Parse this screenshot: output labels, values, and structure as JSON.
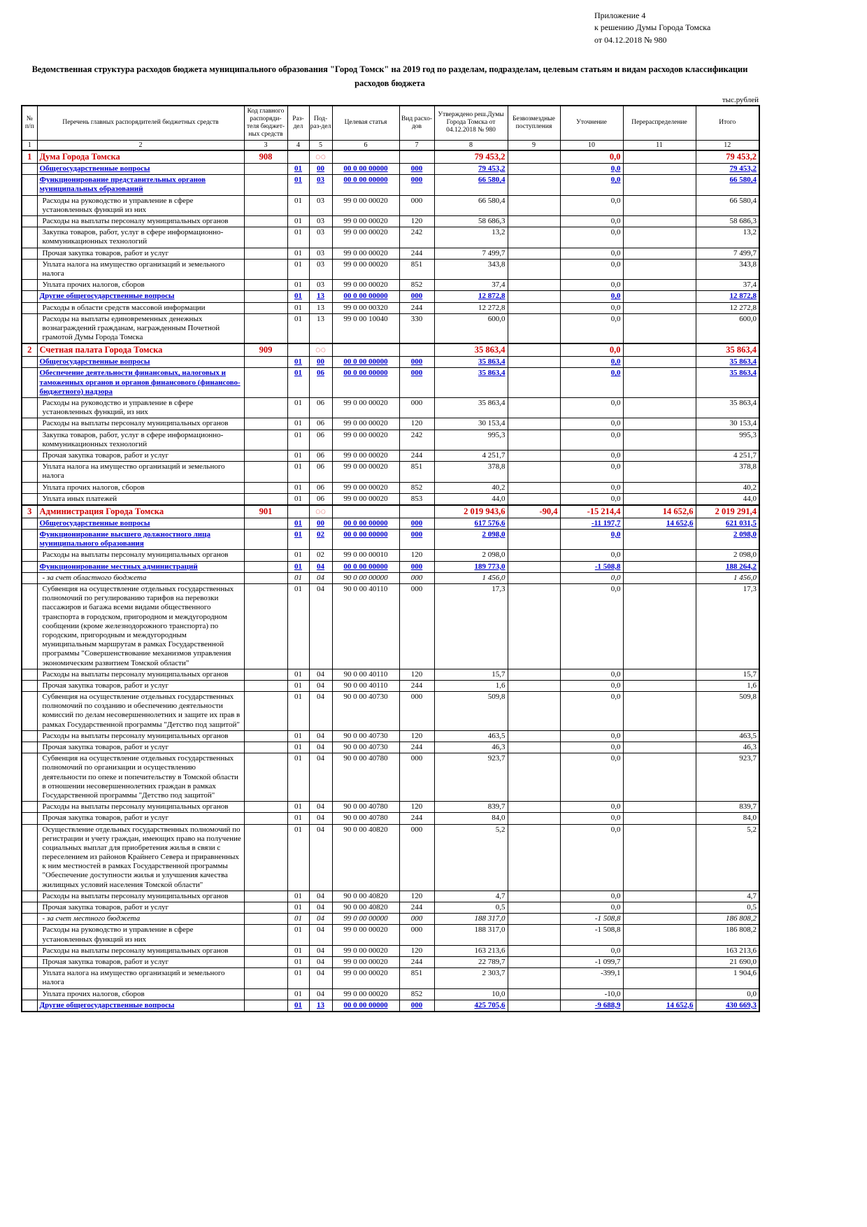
{
  "page": {
    "annotation": [
      "Приложение 4",
      "к решению Думы Города Томска",
      "от 04.12.2018 № 980"
    ],
    "title": "Ведомственная структура расходов бюджета муниципального образования \"Город Томск\" на 2019 год по разделам, подразделам, целевым статьям и видам расходов классификации расходов бюджета",
    "units": "тыс.рублей"
  },
  "table": {
    "headers": [
      "№ п/п",
      "Перечень главных распорядителей бюджетных средств",
      "Код главного распоряди-теля бюджет-ных средств",
      "Раз-дел",
      "Под-раз-дел",
      "Целевая статья",
      "Вид расхо-дов",
      "Утверждено реш.Думы Города Томска от 04.12.2018 № 980",
      "Безвозмездные поступления",
      "Уточнение",
      "Перераспределение",
      "Итого"
    ],
    "column_numbers": [
      "1",
      "2",
      "3",
      "4",
      "5",
      "6",
      "7",
      "8",
      "9",
      "10",
      "11",
      "12"
    ],
    "rows": [
      {
        "style": "red",
        "num": "1",
        "name": "Дума Города Томска",
        "code": "908",
        "rz": "",
        "pr": "◌◌",
        "cs": "",
        "vr": "",
        "approved": "79 453,2",
        "grants": "",
        "adjust": "0,0",
        "redistrib": "",
        "total": "79 453,2"
      },
      {
        "style": "blue",
        "num": "",
        "name": "Общегосударственные вопросы",
        "code": "",
        "rz": "01",
        "pr": "00",
        "cs": "00 0 00 00000",
        "vr": "000",
        "approved": "79 453,2",
        "grants": "",
        "adjust": "0,0",
        "redistrib": "",
        "total": "79 453,2"
      },
      {
        "style": "blue",
        "num": "",
        "name": "Функционирование представительных органов муниципальных образований",
        "code": "",
        "rz": "01",
        "pr": "03",
        "cs": "00 0 00 00000",
        "vr": "000",
        "approved": "66 580,4",
        "grants": "",
        "adjust": "0,0",
        "redistrib": "",
        "total": "66 580,4"
      },
      {
        "style": "normal",
        "num": "",
        "name": "Расходы на руководство и управление в сфере установленных функций из них",
        "code": "",
        "rz": "01",
        "pr": "03",
        "cs": "99 0 00 00020",
        "vr": "000",
        "approved": "66 580,4",
        "grants": "",
        "adjust": "0,0",
        "redistrib": "",
        "total": "66 580,4"
      },
      {
        "style": "normal",
        "num": "",
        "name": "Расходы на выплаты персоналу муниципальных органов",
        "code": "",
        "rz": "01",
        "pr": "03",
        "cs": "99 0 00 00020",
        "vr": "120",
        "approved": "58 686,3",
        "grants": "",
        "adjust": "0,0",
        "redistrib": "",
        "total": "58 686,3"
      },
      {
        "style": "normal",
        "num": "",
        "name": "Закупка товаров, работ, услуг в сфере информационно-коммуникационных технологий",
        "code": "",
        "rz": "01",
        "pr": "03",
        "cs": "99 0 00 00020",
        "vr": "242",
        "approved": "13,2",
        "grants": "",
        "adjust": "0,0",
        "redistrib": "",
        "total": "13,2"
      },
      {
        "style": "normal",
        "num": "",
        "name": "Прочая закупка товаров, работ и услуг",
        "code": "",
        "rz": "01",
        "pr": "03",
        "cs": "99 0 00 00020",
        "vr": "244",
        "approved": "7 499,7",
        "grants": "",
        "adjust": "0,0",
        "redistrib": "",
        "total": "7 499,7"
      },
      {
        "style": "normal",
        "num": "",
        "name": "Уплата налога на имущество организаций и земельного налога",
        "code": "",
        "rz": "01",
        "pr": "03",
        "cs": "99 0 00 00020",
        "vr": "851",
        "approved": "343,8",
        "grants": "",
        "adjust": "0,0",
        "redistrib": "",
        "total": "343,8"
      },
      {
        "style": "normal",
        "num": "",
        "name": "Уплата прочих налогов, сборов",
        "code": "",
        "rz": "01",
        "pr": "03",
        "cs": "99 0 00 00020",
        "vr": "852",
        "approved": "37,4",
        "grants": "",
        "adjust": "0,0",
        "redistrib": "",
        "total": "37,4"
      },
      {
        "style": "blue",
        "num": "",
        "name": "Другие общегосударственные вопросы",
        "code": "",
        "rz": "01",
        "pr": "13",
        "cs": "00 0 00 00000",
        "vr": "000",
        "approved": "12 872,8",
        "grants": "",
        "adjust": "0,0",
        "redistrib": "",
        "total": "12 872,8"
      },
      {
        "style": "normal",
        "num": "",
        "name": "Расходы в области средств массовой информации",
        "code": "",
        "rz": "01",
        "pr": "13",
        "cs": "99 0 00 00320",
        "vr": "244",
        "approved": "12 272,8",
        "grants": "",
        "adjust": "0,0",
        "redistrib": "",
        "total": "12 272,8"
      },
      {
        "style": "normal",
        "num": "",
        "name": "Расходы на выплаты единовременных денежных вознаграждений гражданам, награжденным Почетной грамотой Думы Города Томска",
        "code": "",
        "rz": "01",
        "pr": "13",
        "cs": "99 0 00 10040",
        "vr": "330",
        "approved": "600,0",
        "grants": "",
        "adjust": "0,0",
        "redistrib": "",
        "total": "600,0"
      },
      {
        "style": "red",
        "num": "2",
        "name": "Счетная палата Города Томска",
        "code": "909",
        "rz": "",
        "pr": "◌◌",
        "cs": "",
        "vr": "",
        "approved": "35 863,4",
        "grants": "",
        "adjust": "0,0",
        "redistrib": "",
        "total": "35 863,4"
      },
      {
        "style": "blue",
        "num": "",
        "name": "Общегосударственные вопросы",
        "code": "",
        "rz": "01",
        "pr": "00",
        "cs": "00 0 00 00000",
        "vr": "000",
        "approved": "35 863,4",
        "grants": "",
        "adjust": "0,0",
        "redistrib": "",
        "total": "35 863,4"
      },
      {
        "style": "blue",
        "num": "",
        "name": "Обеспечение деятельности финансовых, налоговых и таможенных органов и органов финансового (финансово-бюджетного) надзора",
        "code": "",
        "rz": "01",
        "pr": "06",
        "cs": "00 0 00 00000",
        "vr": "000",
        "approved": "35 863,4",
        "grants": "",
        "adjust": "0,0",
        "redistrib": "",
        "total": "35 863,4"
      },
      {
        "style": "normal",
        "num": "",
        "name": "Расходы на руководство и управление в сфере установленных функций, из них",
        "code": "",
        "rz": "01",
        "pr": "06",
        "cs": "99 0 00 00020",
        "vr": "000",
        "approved": "35 863,4",
        "grants": "",
        "adjust": "0,0",
        "redistrib": "",
        "total": "35 863,4"
      },
      {
        "style": "normal",
        "num": "",
        "name": "Расходы на выплаты персоналу муниципальных органов",
        "code": "",
        "rz": "01",
        "pr": "06",
        "cs": "99 0 00 00020",
        "vr": "120",
        "approved": "30 153,4",
        "grants": "",
        "adjust": "0,0",
        "redistrib": "",
        "total": "30 153,4"
      },
      {
        "style": "normal",
        "num": "",
        "name": "Закупка товаров, работ, услуг в сфере информационно-коммуникационных технологий",
        "code": "",
        "rz": "01",
        "pr": "06",
        "cs": "99 0 00 00020",
        "vr": "242",
        "approved": "995,3",
        "grants": "",
        "adjust": "0,0",
        "redistrib": "",
        "total": "995,3"
      },
      {
        "style": "normal",
        "num": "",
        "name": "Прочая закупка товаров, работ и услуг",
        "code": "",
        "rz": "01",
        "pr": "06",
        "cs": "99 0 00 00020",
        "vr": "244",
        "approved": "4 251,7",
        "grants": "",
        "adjust": "0,0",
        "redistrib": "",
        "total": "4 251,7"
      },
      {
        "style": "normal",
        "num": "",
        "name": "Уплата налога на имущество организаций и земельного налога",
        "code": "",
        "rz": "01",
        "pr": "06",
        "cs": "99 0 00 00020",
        "vr": "851",
        "approved": "378,8",
        "grants": "",
        "adjust": "0,0",
        "redistrib": "",
        "total": "378,8"
      },
      {
        "style": "normal",
        "num": "",
        "name": "Уплата прочих налогов, сборов",
        "code": "",
        "rz": "01",
        "pr": "06",
        "cs": "99 0 00 00020",
        "vr": "852",
        "approved": "40,2",
        "grants": "",
        "adjust": "0,0",
        "redistrib": "",
        "total": "40,2"
      },
      {
        "style": "normal",
        "num": "",
        "name": "Уплата иных платежей",
        "code": "",
        "rz": "01",
        "pr": "06",
        "cs": "99 0 00 00020",
        "vr": "853",
        "approved": "44,0",
        "grants": "",
        "adjust": "0,0",
        "redistrib": "",
        "total": "44,0"
      },
      {
        "style": "red",
        "num": "3",
        "name": "Администрация Города Томска",
        "code": "901",
        "rz": "",
        "pr": "◌◌",
        "cs": "",
        "vr": "",
        "approved": "2 019 943,6",
        "grants": "-90,4",
        "adjust": "-15 214,4",
        "redistrib": "14 652,6",
        "total": "2 019 291,4"
      },
      {
        "style": "blue",
        "num": "",
        "name": "Общегосударственные вопросы",
        "code": "",
        "rz": "01",
        "pr": "00",
        "cs": "00 0 00 00000",
        "vr": "000",
        "approved": "617 576,6",
        "grants": "",
        "adjust": "-11 197,7",
        "redistrib": "14 652,6",
        "total": "621 031,5"
      },
      {
        "style": "blue",
        "num": "",
        "name": "Функционирование высшего должностного лица муниципального образования",
        "code": "",
        "rz": "01",
        "pr": "02",
        "cs": "00 0 00 00000",
        "vr": "000",
        "approved": "2 098,0",
        "grants": "",
        "adjust": "0,0",
        "redistrib": "",
        "total": "2 098,0"
      },
      {
        "style": "normal",
        "num": "",
        "name": "Расходы на выплаты персоналу муниципальных органов",
        "code": "",
        "rz": "01",
        "pr": "02",
        "cs": "99 0 00 00010",
        "vr": "120",
        "approved": "2 098,0",
        "grants": "",
        "adjust": "0,0",
        "redistrib": "",
        "total": "2 098,0"
      },
      {
        "style": "blue",
        "num": "",
        "name": "Функционирование местных администраций",
        "code": "",
        "rz": "01",
        "pr": "04",
        "cs": "00 0 00 00000",
        "vr": "000",
        "approved": "189 773,0",
        "grants": "",
        "adjust": "-1 508,8",
        "redistrib": "",
        "total": "188 264,2"
      },
      {
        "style": "italic",
        "num": "",
        "name": "- за счет областного бюджета",
        "code": "",
        "rz": "01",
        "pr": "04",
        "cs": "90 0 00 00000",
        "vr": "000",
        "approved": "1 456,0",
        "grants": "",
        "adjust": "0,0",
        "redistrib": "",
        "total": "1 456,0"
      },
      {
        "style": "normal",
        "num": "",
        "name": "Субвенция на осуществление отдельных государственных полномочий по регулированию тарифов на перевозки пассажиров и багажа всеми видами общественного транспорта в городском, пригородном и междугородном сообщении (кроме железнодорожного транспорта) по городским, пригородным и междугородным муниципальным маршрутам в рамках Государственной программы \"Совершенствование механизмов управления экономическим развитием Томской области\"",
        "code": "",
        "rz": "01",
        "pr": "04",
        "cs": "90 0 00 40110",
        "vr": "000",
        "approved": "17,3",
        "grants": "",
        "adjust": "0,0",
        "redistrib": "",
        "total": "17,3"
      },
      {
        "style": "normal",
        "num": "",
        "name": "Расходы на выплаты персоналу муниципальных органов",
        "code": "",
        "rz": "01",
        "pr": "04",
        "cs": "90 0 00 40110",
        "vr": "120",
        "approved": "15,7",
        "grants": "",
        "adjust": "0,0",
        "redistrib": "",
        "total": "15,7"
      },
      {
        "style": "normal",
        "num": "",
        "name": "Прочая закупка товаров, работ и услуг",
        "code": "",
        "rz": "01",
        "pr": "04",
        "cs": "90 0 00 40110",
        "vr": "244",
        "approved": "1,6",
        "grants": "",
        "adjust": "0,0",
        "redistrib": "",
        "total": "1,6"
      },
      {
        "style": "normal",
        "num": "",
        "name": "Субвенция на осуществление отдельных государственных полномочий по созданию и обеспечению деятельности комиссий по делам несовершеннолетних и защите их прав в рамках Государственной программы \"Детство под защитой\"",
        "code": "",
        "rz": "01",
        "pr": "04",
        "cs": "90 0 00 40730",
        "vr": "000",
        "approved": "509,8",
        "grants": "",
        "adjust": "0,0",
        "redistrib": "",
        "total": "509,8"
      },
      {
        "style": "normal",
        "num": "",
        "name": "Расходы на выплаты персоналу муниципальных органов",
        "code": "",
        "rz": "01",
        "pr": "04",
        "cs": "90 0 00 40730",
        "vr": "120",
        "approved": "463,5",
        "grants": "",
        "adjust": "0,0",
        "redistrib": "",
        "total": "463,5"
      },
      {
        "style": "normal",
        "num": "",
        "name": "Прочая закупка товаров, работ и услуг",
        "code": "",
        "rz": "01",
        "pr": "04",
        "cs": "90 0 00 40730",
        "vr": "244",
        "approved": "46,3",
        "grants": "",
        "adjust": "0,0",
        "redistrib": "",
        "total": "46,3"
      },
      {
        "style": "normal",
        "num": "",
        "name": "Субвенция на осуществление отдельных государственных полномочий по организации и осуществлению деятельности по опеке и попечительству в Томской области в отношении несовершеннолетних граждан в рамках Государственной программы \"Детство под защитой\"",
        "code": "",
        "rz": "01",
        "pr": "04",
        "cs": "90 0 00 40780",
        "vr": "000",
        "approved": "923,7",
        "grants": "",
        "adjust": "0,0",
        "redistrib": "",
        "total": "923,7"
      },
      {
        "style": "normal",
        "num": "",
        "name": "Расходы на выплаты персоналу муниципальных органов",
        "code": "",
        "rz": "01",
        "pr": "04",
        "cs": "90 0 00 40780",
        "vr": "120",
        "approved": "839,7",
        "grants": "",
        "adjust": "0,0",
        "redistrib": "",
        "total": "839,7"
      },
      {
        "style": "normal",
        "num": "",
        "name": "Прочая закупка товаров, работ и услуг",
        "code": "",
        "rz": "01",
        "pr": "04",
        "cs": "90 0 00 40780",
        "vr": "244",
        "approved": "84,0",
        "grants": "",
        "adjust": "0,0",
        "redistrib": "",
        "total": "84,0"
      },
      {
        "style": "normal",
        "num": "",
        "name": "Осуществление отдельных государственных полномочий по регистрации и учету граждан, имеющих право на получение социальных выплат для приобретения жилья в связи с переселением из районов Крайнего Севера и приравненных к ним местностей в рамках Государственной программы \"Обеспечение доступности жилья и улучшения качества жилищных условий населения Томской области\"",
        "code": "",
        "rz": "01",
        "pr": "04",
        "cs": "90 0 00 40820",
        "vr": "000",
        "approved": "5,2",
        "grants": "",
        "adjust": "0,0",
        "redistrib": "",
        "total": "5,2"
      },
      {
        "style": "normal",
        "num": "",
        "name": "Расходы на выплаты персоналу муниципальных органов",
        "code": "",
        "rz": "01",
        "pr": "04",
        "cs": "90 0 00 40820",
        "vr": "120",
        "approved": "4,7",
        "grants": "",
        "adjust": "0,0",
        "redistrib": "",
        "total": "4,7"
      },
      {
        "style": "normal",
        "num": "",
        "name": "Прочая закупка товаров, работ и услуг",
        "code": "",
        "rz": "01",
        "pr": "04",
        "cs": "90 0 00 40820",
        "vr": "244",
        "approved": "0,5",
        "grants": "",
        "adjust": "0,0",
        "redistrib": "",
        "total": "0,5"
      },
      {
        "style": "italic",
        "num": "",
        "name": "- за счет местного бюджета",
        "code": "",
        "rz": "01",
        "pr": "04",
        "cs": "99 0 00 00000",
        "vr": "000",
        "approved": "188 317,0",
        "grants": "",
        "adjust": "-1 508,8",
        "redistrib": "",
        "total": "186 808,2"
      },
      {
        "style": "normal",
        "num": "",
        "name": "Расходы на руководство и управление в сфере установленных функций из них",
        "code": "",
        "rz": "01",
        "pr": "04",
        "cs": "99 0 00 00020",
        "vr": "000",
        "approved": "188 317,0",
        "grants": "",
        "adjust": "-1 508,8",
        "redistrib": "",
        "total": "186 808,2"
      },
      {
        "style": "normal",
        "num": "",
        "name": "Расходы на выплаты персоналу муниципальных органов",
        "code": "",
        "rz": "01",
        "pr": "04",
        "cs": "99 0 00 00020",
        "vr": "120",
        "approved": "163 213,6",
        "grants": "",
        "adjust": "0,0",
        "redistrib": "",
        "total": "163 213,6"
      },
      {
        "style": "normal",
        "num": "",
        "name": "Прочая закупка товаров, работ и услуг",
        "code": "",
        "rz": "01",
        "pr": "04",
        "cs": "99 0 00 00020",
        "vr": "244",
        "approved": "22 789,7",
        "grants": "",
        "adjust": "-1 099,7",
        "redistrib": "",
        "total": "21 690,0"
      },
      {
        "style": "normal",
        "num": "",
        "name": "Уплата налога на имущество организаций и земельного налога",
        "code": "",
        "rz": "01",
        "pr": "04",
        "cs": "99 0 00 00020",
        "vr": "851",
        "approved": "2 303,7",
        "grants": "",
        "adjust": "-399,1",
        "redistrib": "",
        "total": "1 904,6"
      },
      {
        "style": "normal",
        "num": "",
        "name": "Уплата прочих налогов, сборов",
        "code": "",
        "rz": "01",
        "pr": "04",
        "cs": "99 0 00 00020",
        "vr": "852",
        "approved": "10,0",
        "grants": "",
        "adjust": "-10,0",
        "redistrib": "",
        "total": "0,0"
      },
      {
        "style": "blue",
        "num": "",
        "name": "Другие общегосударственные вопросы",
        "code": "",
        "rz": "01",
        "pr": "13",
        "cs": "00 0 00 00000",
        "vr": "000",
        "approved": "425 705,6",
        "grants": "",
        "adjust": "-9 688,9",
        "redistrib": "14 652,6",
        "total": "430 669,3"
      }
    ]
  }
}
